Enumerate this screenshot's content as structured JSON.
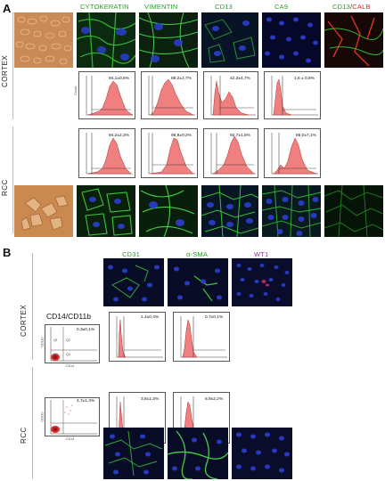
{
  "panel_a": {
    "letter": "A",
    "row_labels": {
      "top": "CORTEX",
      "bottom": "RCC"
    },
    "headers": [
      {
        "text": "CYTOKERATIN",
        "color": "#2a9a2a"
      },
      {
        "text": "VIMENTIN",
        "color": "#2a9a2a"
      },
      {
        "text": "CD13",
        "color": "#2a9a2a"
      },
      {
        "text": "CA9",
        "color": "#2a9a2a"
      }
    ],
    "header_merged": {
      "part1": "CD13",
      "sep": "/",
      "part2": "CALB",
      "color1": "#2a9a2a",
      "color2": "#d12a2a"
    },
    "cortex_stats": [
      "94,1±0,6%",
      "88,2±2,7%",
      "42,3±4,7%",
      "1,6 ± 0,8%"
    ],
    "rcc_stats": [
      "94,2±2,3%",
      "98,8±0,2%",
      "92,7±1,8%",
      "86,0±7,1%"
    ],
    "count_label": "Count"
  },
  "panel_b": {
    "letter": "B",
    "row_labels": {
      "top": "CORTEX",
      "bottom": "RCC"
    },
    "headers": [
      {
        "text": "CD31",
        "color": "#2a9a2a"
      },
      {
        "text": "α-SMA",
        "color": "#2a9a2a"
      },
      {
        "text": "WT1",
        "color": "#a02aa0"
      }
    ],
    "dot_title": "CD14/CD11b",
    "dot_axes": {
      "x": "CD14",
      "y": "CD11b"
    },
    "dot_quadrants": [
      "Q1",
      "Q2",
      "Q3",
      "Q4"
    ],
    "cortex_stats": [
      "0,3±0,1%",
      "1,4±0,4%",
      "0,7±0,1%"
    ],
    "rcc_stats": [
      "4,7±1,3%",
      "3,8±1,3%",
      "8,9±2,2%"
    ],
    "count_label": "Count"
  },
  "colors": {
    "hist_fill": "#f08080",
    "hist_stroke": "#b03030",
    "nuclei": "#2b3fd0",
    "fiber": "#36c23a",
    "calb": "#e03020",
    "wt1": "#c0306a",
    "phase": "#c98a55"
  }
}
